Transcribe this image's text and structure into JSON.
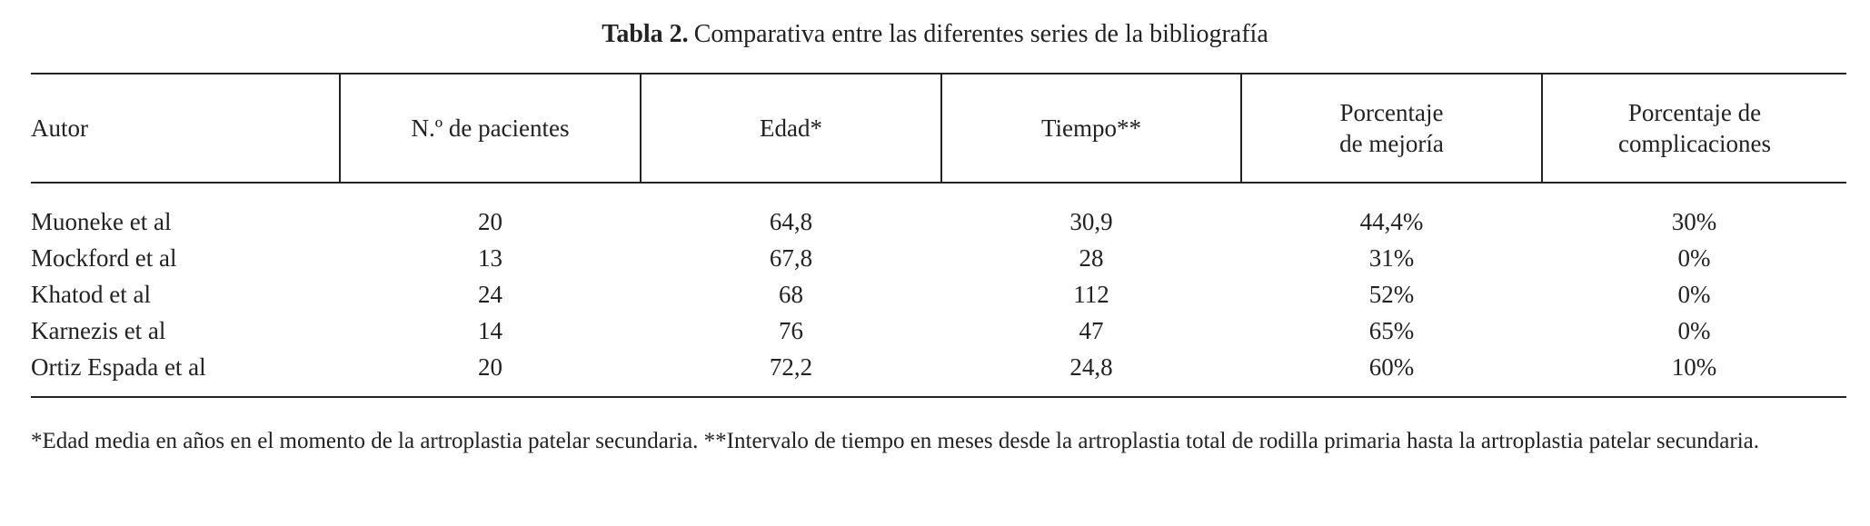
{
  "title": {
    "label": "Tabla 2.",
    "text": "Comparativa entre las diferentes series de la bibliografía"
  },
  "table": {
    "header": [
      "Autor",
      "N.º de pacientes",
      "Edad*",
      "Tiempo**",
      "Porcentaje\nde mejoría",
      "Porcentaje de\ncomplicaciones"
    ],
    "rows": [
      [
        "Muoneke et al",
        "20",
        "64,8",
        "30,9",
        "44,4%",
        "30%"
      ],
      [
        "Mockford et al",
        "13",
        "67,8",
        "28",
        "31%",
        "0%"
      ],
      [
        "Khatod et al",
        "24",
        "68",
        "112",
        "52%",
        "0%"
      ],
      [
        "Karnezis et al",
        "14",
        "76",
        "47",
        "65%",
        "0%"
      ],
      [
        "Ortiz Espada et al",
        "20",
        "72,2",
        "24,8",
        "60%",
        "10%"
      ]
    ]
  },
  "footnote": "*Edad media en años en el momento de la artroplastia patelar secundaria. **Intervalo de tiempo en meses desde la artroplastia total de rodilla primaria hasta la artroplastia patelar secundaria."
}
